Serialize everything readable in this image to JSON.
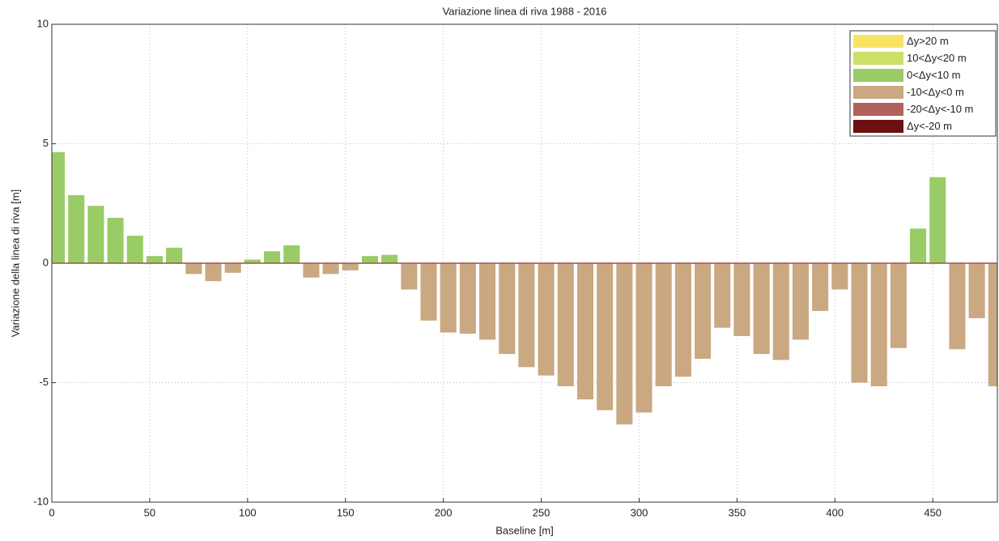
{
  "chart_data": {
    "type": "bar",
    "title": "Variazione linea di riva 1988 - 2016",
    "x_label": "Baseline [m]",
    "y_label": "Variazione della linea di riva [m]",
    "x": [
      2.5,
      12.5,
      22.5,
      32.5,
      42.5,
      52.5,
      62.5,
      72.5,
      82.5,
      92.5,
      102.5,
      112.5,
      122.5,
      132.5,
      142.5,
      152.5,
      162.5,
      172.5,
      182.5,
      192.5,
      202.5,
      212.5,
      222.5,
      232.5,
      242.5,
      252.5,
      262.5,
      272.5,
      282.5,
      292.5,
      302.5,
      312.5,
      322.5,
      332.5,
      342.5,
      352.5,
      362.5,
      372.5,
      382.5,
      392.5,
      402.5,
      412.5,
      422.5,
      432.5,
      442.5,
      452.5,
      462.5,
      472.5,
      482.5
    ],
    "values": [
      4.65,
      2.85,
      2.4,
      1.9,
      1.15,
      0.3,
      0.65,
      -0.45,
      -0.75,
      -0.4,
      0.15,
      0.5,
      0.75,
      -0.6,
      -0.45,
      -0.3,
      0.3,
      0.35,
      -1.1,
      -2.4,
      -2.9,
      -2.95,
      -3.2,
      -3.8,
      -4.35,
      -4.7,
      -5.15,
      -5.7,
      -6.15,
      -6.75,
      -6.25,
      -5.15,
      -4.75,
      -4.0,
      -2.7,
      -3.05,
      -3.8,
      -4.05,
      -3.2,
      -2.0,
      -1.1,
      -5.0,
      -5.15,
      -3.55,
      1.45,
      3.6,
      -3.6,
      -2.3,
      -5.15
    ],
    "colors": [
      "#99cc66",
      "#99cc66",
      "#99cc66",
      "#99cc66",
      "#99cc66",
      "#99cc66",
      "#99cc66",
      "#c9a882",
      "#c9a882",
      "#c9a882",
      "#99cc66",
      "#99cc66",
      "#99cc66",
      "#c9a882",
      "#c9a882",
      "#c9a882",
      "#99cc66",
      "#99cc66",
      "#c9a882",
      "#c9a882",
      "#c9a882",
      "#c9a882",
      "#c9a882",
      "#c9a882",
      "#c9a882",
      "#c9a882",
      "#c9a882",
      "#c9a882",
      "#c9a882",
      "#c9a882",
      "#c9a882",
      "#c9a882",
      "#c9a882",
      "#c9a882",
      "#c9a882",
      "#c9a882",
      "#c9a882",
      "#c9a882",
      "#c9a882",
      "#c9a882",
      "#c9a882",
      "#c9a882",
      "#c9a882",
      "#c9a882",
      "#99cc66",
      "#99cc66",
      "#c9a882",
      "#c9a882",
      "#c9a882"
    ],
    "legend": [
      {
        "label": "Δy>20 m",
        "color": "#f7e463"
      },
      {
        "label": "10<Δy<20 m",
        "color": "#cce06a"
      },
      {
        "label": "0<Δy<10 m",
        "color": "#99cc66"
      },
      {
        "label": "-10<Δy<0 m",
        "color": "#c9a882"
      },
      {
        "label": "-20<Δy<-10 m",
        "color": "#b0625a"
      },
      {
        "label": "Δy<-20 m",
        "color": "#6b1010"
      }
    ],
    "xlim": [
      0,
      483
    ],
    "xticks": [
      0,
      50,
      100,
      150,
      200,
      250,
      300,
      350,
      400,
      450
    ],
    "ylim": [
      -10,
      10
    ],
    "yticks": [
      -10,
      -5,
      0,
      5,
      10
    ],
    "grid": true
  }
}
